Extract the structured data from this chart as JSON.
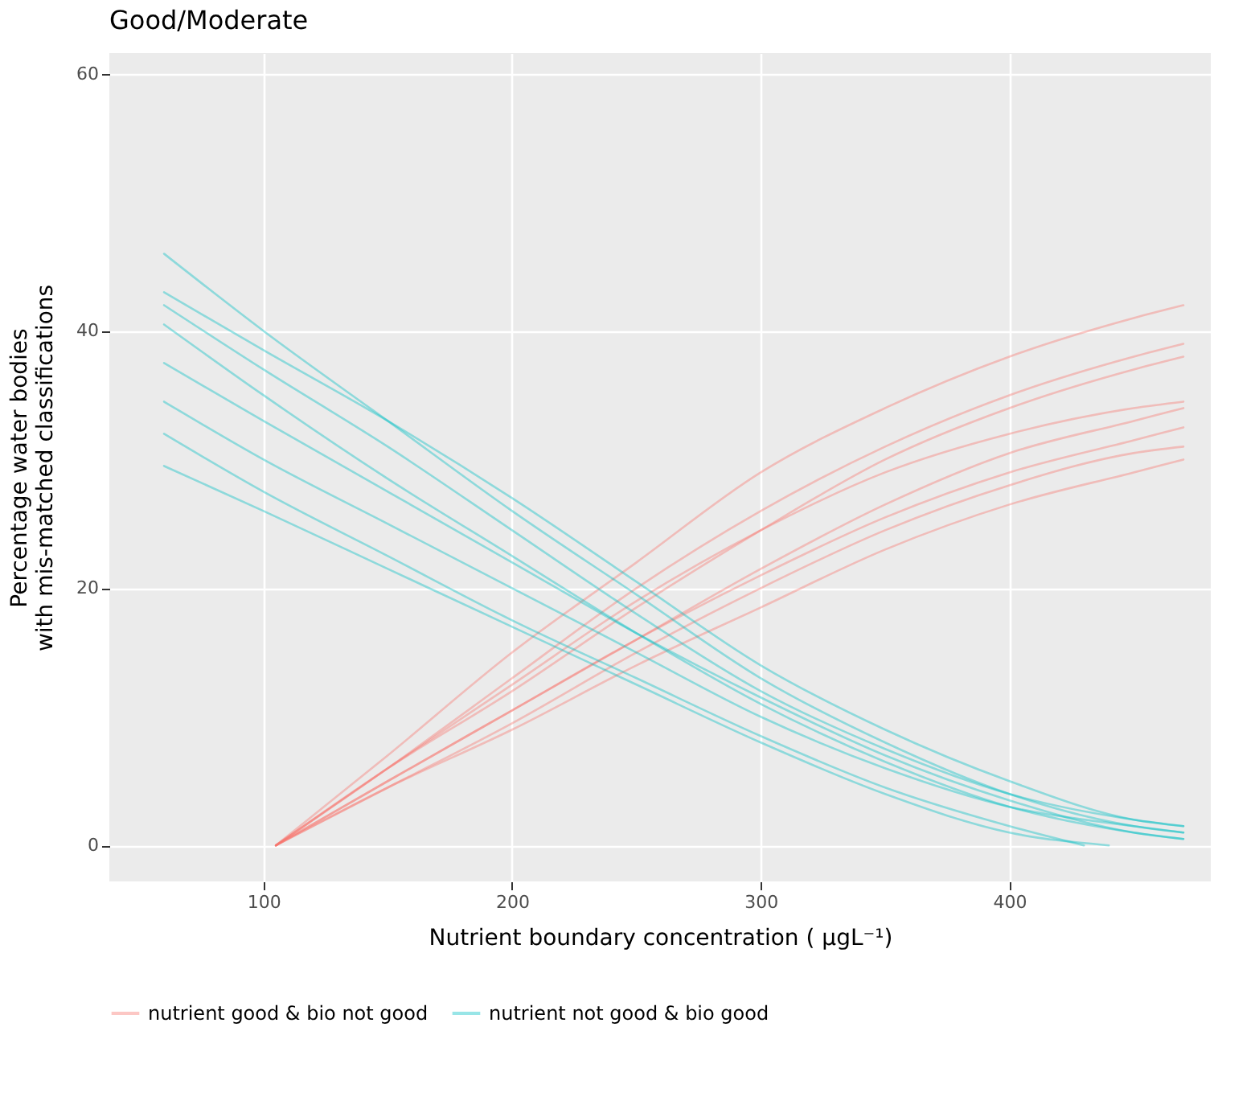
{
  "chart_data": {
    "type": "line",
    "title": "Good/Moderate",
    "xlabel": "Nutrient boundary concentration  ( µgL⁻¹)",
    "ylabel": "Percentage water bodies\nwith mis-matched classifications",
    "xlim": [
      38,
      481
    ],
    "ylim": [
      -2.8,
      61.6
    ],
    "xticks": [
      100,
      200,
      300,
      400
    ],
    "yticks": [
      0,
      20,
      40,
      60
    ],
    "grid": true,
    "legend": "bottom",
    "series": [
      {
        "name": "nutrient good & bio not good",
        "color": "#f8766d",
        "x": [
          105,
          150,
          200,
          250,
          300,
          350,
          400,
          450,
          470
        ],
        "values": [
          0,
          7,
          15,
          22,
          29,
          34,
          38,
          41,
          42
        ]
      },
      {
        "color": "#f8766d",
        "x": [
          105,
          150,
          200,
          250,
          300,
          350,
          400,
          450,
          470
        ],
        "values": [
          0,
          6,
          13,
          20,
          26,
          31,
          35,
          38,
          39
        ]
      },
      {
        "color": "#f8766d",
        "x": [
          105,
          150,
          200,
          250,
          300,
          350,
          400,
          450,
          470
        ],
        "values": [
          0,
          6,
          12,
          18.5,
          24.5,
          30,
          34,
          37,
          38
        ]
      },
      {
        "color": "#f8766d",
        "x": [
          105,
          150,
          200,
          250,
          300,
          350,
          400,
          450,
          470
        ],
        "values": [
          0,
          6,
          12.5,
          19,
          24.5,
          29,
          32,
          34,
          34.5
        ]
      },
      {
        "color": "#f8766d",
        "x": [
          105,
          150,
          200,
          250,
          300,
          350,
          400,
          450,
          470
        ],
        "values": [
          0,
          5,
          10.5,
          16,
          21.5,
          26.5,
          30.5,
          33,
          34
        ]
      },
      {
        "color": "#f8766d",
        "x": [
          105,
          150,
          200,
          250,
          300,
          350,
          400,
          450,
          470
        ],
        "values": [
          0,
          5,
          10.5,
          16,
          21,
          25.5,
          29,
          31.5,
          32.5
        ]
      },
      {
        "color": "#f8766d",
        "x": [
          105,
          150,
          200,
          250,
          300,
          350,
          400,
          450,
          470
        ],
        "values": [
          0,
          4.5,
          9.5,
          15,
          20,
          24.5,
          28,
          30.5,
          31
        ]
      },
      {
        "color": "#f8766d",
        "x": [
          105,
          150,
          200,
          250,
          300,
          350,
          400,
          450,
          470
        ],
        "values": [
          0,
          4.5,
          9,
          14,
          18.5,
          23,
          26.5,
          29,
          30
        ]
      },
      {
        "name": "nutrient not good & bio good",
        "color": "#00bfc4",
        "x": [
          60,
          100,
          150,
          200,
          250,
          300,
          350,
          400,
          450,
          470
        ],
        "values": [
          46,
          40,
          33,
          26,
          19.5,
          13,
          8,
          4,
          1.5,
          1
        ]
      },
      {
        "color": "#00bfc4",
        "x": [
          60,
          100,
          150,
          200,
          250,
          300,
          350,
          400,
          450,
          470
        ],
        "values": [
          43,
          38.5,
          33,
          27,
          20.5,
          14,
          9,
          5,
          2,
          1.5
        ]
      },
      {
        "color": "#00bfc4",
        "x": [
          60,
          100,
          150,
          200,
          250,
          300,
          350,
          400,
          450,
          470
        ],
        "values": [
          42,
          37,
          31,
          24.5,
          18,
          12,
          7.5,
          4,
          2,
          1.5
        ]
      },
      {
        "color": "#00bfc4",
        "x": [
          60,
          100,
          150,
          200,
          250,
          300,
          350,
          400,
          450,
          470
        ],
        "values": [
          40.5,
          35,
          28.5,
          22.5,
          16.5,
          11,
          6.5,
          3,
          1,
          0.5
        ]
      },
      {
        "color": "#00bfc4",
        "x": [
          60,
          100,
          150,
          200,
          250,
          300,
          350,
          400,
          450,
          470
        ],
        "values": [
          37.5,
          33,
          27.5,
          22,
          16.5,
          11.5,
          7,
          3.5,
          1,
          0.5
        ]
      },
      {
        "color": "#00bfc4",
        "x": [
          60,
          100,
          150,
          200,
          250,
          300,
          350,
          400,
          450,
          470
        ],
        "values": [
          34.5,
          30,
          25,
          20,
          15,
          10,
          6,
          3,
          1.5,
          1
        ]
      },
      {
        "color": "#00bfc4",
        "x": [
          60,
          100,
          150,
          200,
          250,
          300,
          350,
          400,
          430
        ],
        "values": [
          32,
          27.5,
          22.5,
          17.5,
          13,
          8.5,
          4.5,
          1.5,
          0
        ]
      },
      {
        "color": "#00bfc4",
        "x": [
          60,
          100,
          150,
          200,
          250,
          300,
          350,
          400,
          440
        ],
        "values": [
          29.5,
          26,
          21.5,
          17,
          12.5,
          8,
          4,
          1,
          0
        ]
      }
    ]
  }
}
